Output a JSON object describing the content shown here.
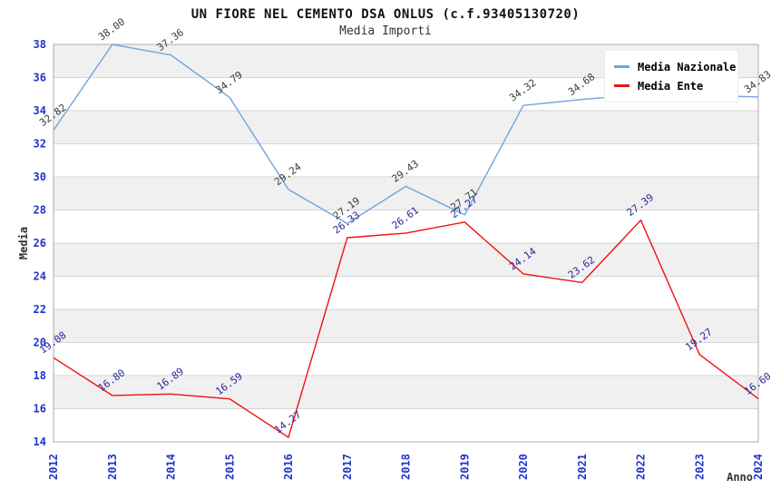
{
  "header": {
    "title": "UN FIORE NEL CEMENTO DSA ONLUS (c.f.93405130720)",
    "subtitle": "Media Importi"
  },
  "chart_data": {
    "type": "line",
    "title": "UN FIORE NEL CEMENTO DSA ONLUS (c.f.93405130720)",
    "subtitle": "Media Importi",
    "xlabel": "Anno",
    "ylabel": "Media",
    "x": [
      "2012",
      "2013",
      "2014",
      "2015",
      "2016",
      "2017",
      "2018",
      "2019",
      "2020",
      "2021",
      "2022",
      "2023",
      "2024"
    ],
    "ylim": [
      14,
      38
    ],
    "ytick_step": 2,
    "grid": "horizontal-bands-alternating",
    "legend_position": "top-right",
    "series": [
      {
        "name": "Media Nazionale",
        "color": "#6FA3DF",
        "label_color": "#3A3A3A",
        "values": [
          32.82,
          38.0,
          37.36,
          34.79,
          29.24,
          27.19,
          29.43,
          27.71,
          34.32,
          34.68,
          34.97,
          34.94,
          34.83
        ],
        "point_labels": [
          "32.82",
          "38.00",
          "37.36",
          "34.79",
          "29.24",
          "27.19",
          "29.43",
          "27.71",
          "34.32",
          "34.68",
          null,
          null,
          "34.83"
        ]
      },
      {
        "name": "Media Ente",
        "color": "#EE1111",
        "label_color": "#28289A",
        "values": [
          19.08,
          16.8,
          16.89,
          16.59,
          14.27,
          26.33,
          26.61,
          27.27,
          24.14,
          23.62,
          27.39,
          19.27,
          16.6
        ],
        "point_labels": [
          "19.08",
          "16.80",
          "16.89",
          "16.59",
          "14.27",
          "26.33",
          "26.61",
          "27.27",
          "24.14",
          "23.62",
          "27.39",
          "19.27",
          "16.60"
        ]
      }
    ]
  },
  "axes": {
    "y_ticks": [
      "38",
      "36",
      "34",
      "32",
      "30",
      "28",
      "26",
      "24",
      "22",
      "20",
      "18",
      "16",
      "14"
    ],
    "y_label": "Media",
    "x_label": "Anno"
  },
  "colors": {
    "tick_label": "#2233CC",
    "band_gray": "#F0F0F0",
    "gridline": "#D6D6D6",
    "frame": "#ABABAB",
    "background": "#FFFFFF",
    "axis_title": "#333333"
  }
}
